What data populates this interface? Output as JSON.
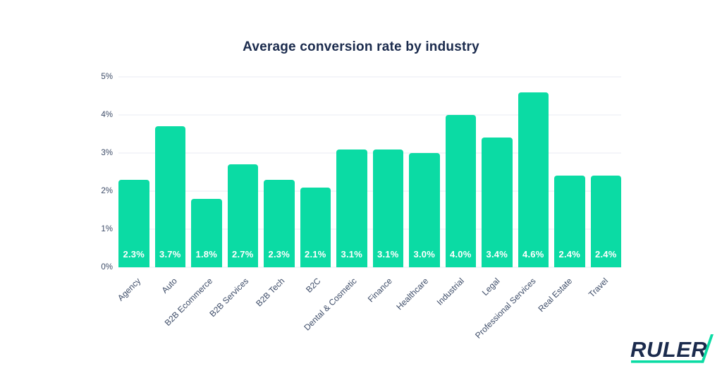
{
  "theme": {
    "background": "#ffffff",
    "accent": "#0bdba4",
    "navy": "#1b2b4d",
    "slate": "#3d4c68",
    "grid": "#e9ebf3",
    "value_label": "#ffffff"
  },
  "chart_data": {
    "type": "bar",
    "title": "Average conversion rate by industry",
    "categories": [
      "Agency",
      "Auto",
      "B2B Ecommerce",
      "B2B Services",
      "B2B Tech",
      "B2C",
      "Dental & Cosmetic",
      "Finance",
      "Healthcare",
      "Industrial",
      "Legal",
      "Professional Services",
      "Real Estate",
      "Travel"
    ],
    "values": [
      2.3,
      3.7,
      1.8,
      2.7,
      2.3,
      2.1,
      3.1,
      3.1,
      3.0,
      4.0,
      3.4,
      4.6,
      2.4,
      2.4
    ],
    "value_labels": [
      "2.3%",
      "3.7%",
      "1.8%",
      "2.7%",
      "2.3%",
      "2.1%",
      "3.1%",
      "3.1%",
      "3.0%",
      "4.0%",
      "3.4%",
      "4.6%",
      "2.4%",
      "2.4%"
    ],
    "y_ticks": [
      "0%",
      "1%",
      "2%",
      "3%",
      "4%",
      "5%"
    ],
    "ylim": [
      0,
      5
    ],
    "grid": true,
    "legend_position": "none",
    "xlabel": "",
    "ylabel": "",
    "bar_color": "#0bdba4",
    "x_label_rotation_deg": -45
  },
  "branding": {
    "logo_text": "RULER"
  }
}
